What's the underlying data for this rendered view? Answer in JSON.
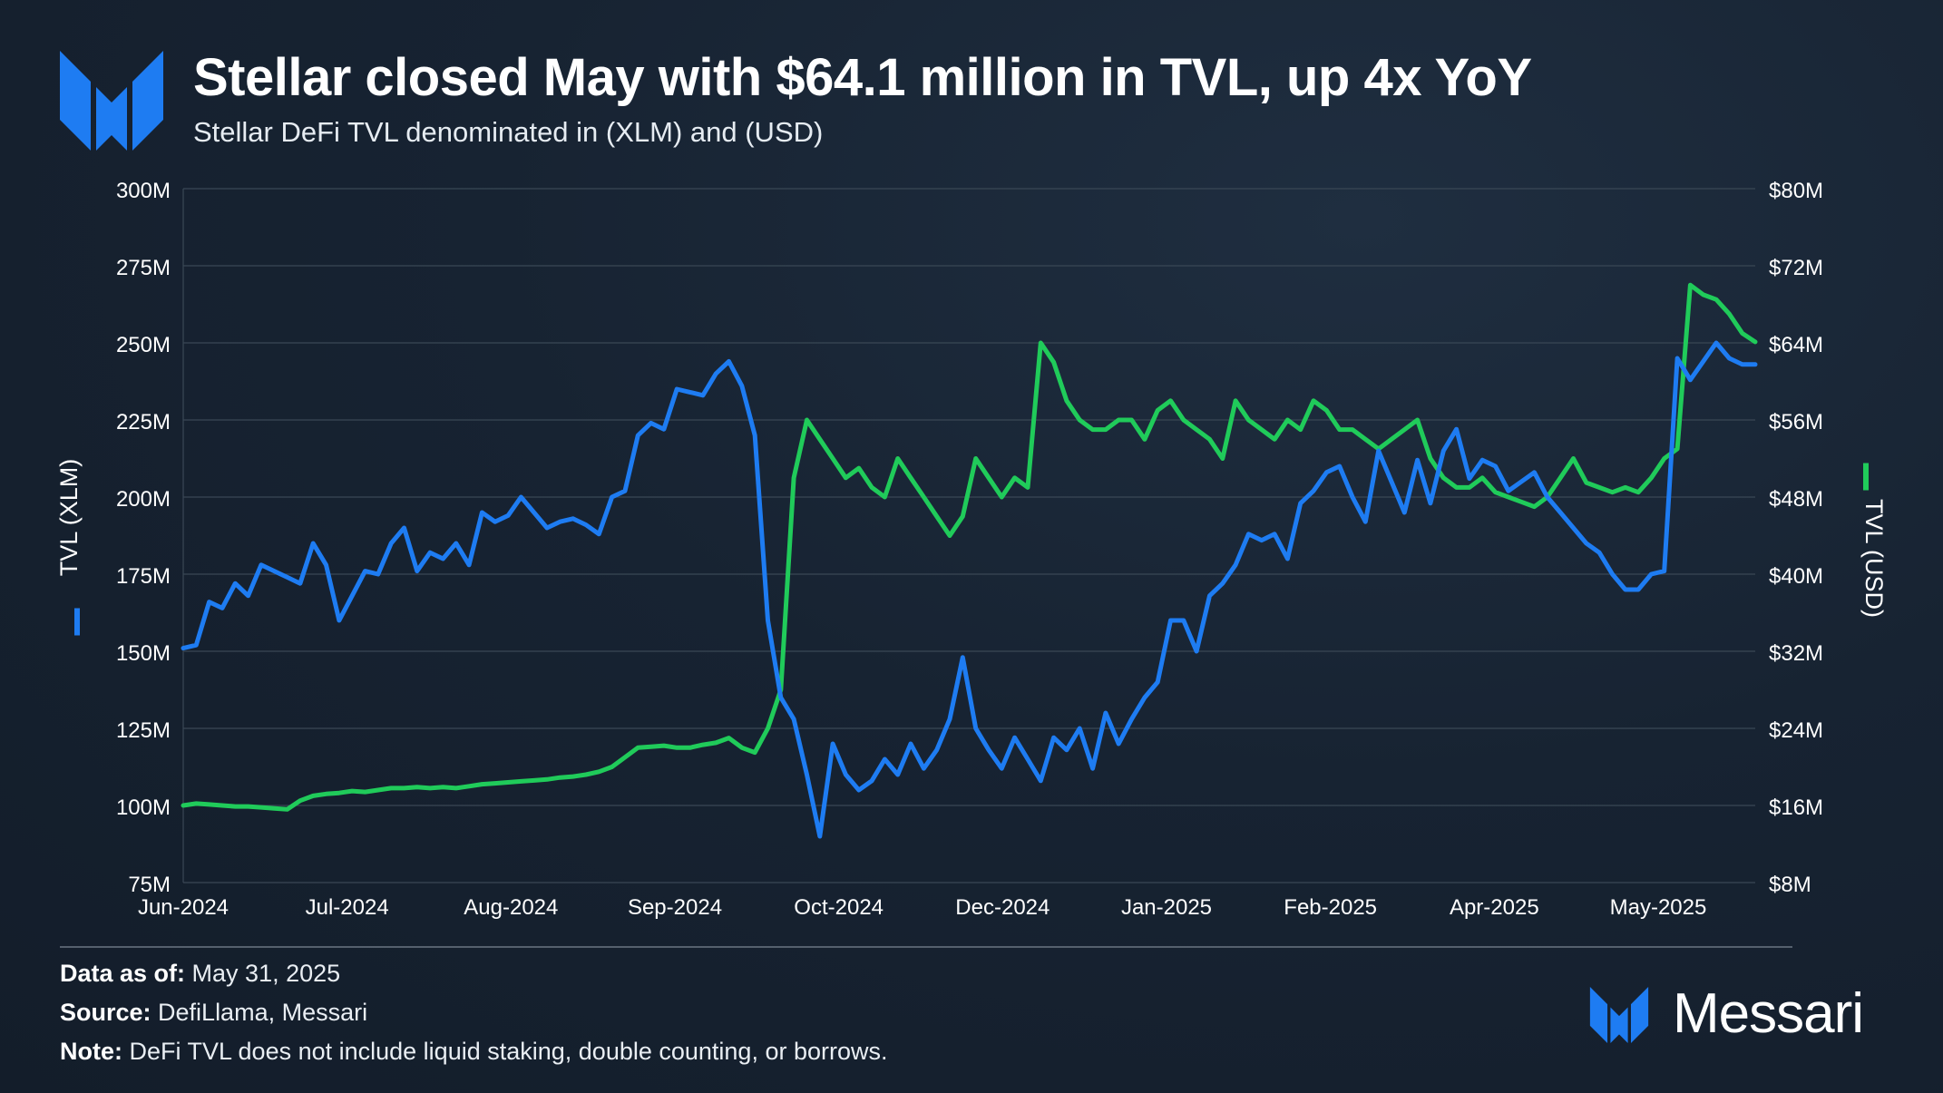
{
  "header": {
    "title": "Stellar closed May with $64.1 million in TVL, up 4x YoY",
    "subtitle": "Stellar DeFi TVL denominated in (XLM) and (USD)"
  },
  "colors": {
    "xlm": "#1e7cf2",
    "usd": "#20cb5a",
    "grid": "#3a4755",
    "text": "#ffffff"
  },
  "chart_data": {
    "type": "line",
    "x": [
      "2024-06-01",
      "2024-06-04",
      "2024-06-07",
      "2024-06-10",
      "2024-06-13",
      "2024-06-16",
      "2024-06-19",
      "2024-06-22",
      "2024-06-25",
      "2024-06-28",
      "2024-07-01",
      "2024-07-04",
      "2024-07-07",
      "2024-07-10",
      "2024-07-13",
      "2024-07-16",
      "2024-07-19",
      "2024-07-22",
      "2024-07-25",
      "2024-07-28",
      "2024-07-31",
      "2024-08-03",
      "2024-08-06",
      "2024-08-09",
      "2024-08-12",
      "2024-08-15",
      "2024-08-18",
      "2024-08-21",
      "2024-08-24",
      "2024-08-27",
      "2024-08-30",
      "2024-09-02",
      "2024-09-05",
      "2024-09-08",
      "2024-09-11",
      "2024-09-14",
      "2024-09-17",
      "2024-09-20",
      "2024-09-23",
      "2024-09-26",
      "2024-09-29",
      "2024-10-02",
      "2024-10-05",
      "2024-10-08",
      "2024-10-11",
      "2024-10-14",
      "2024-10-17",
      "2024-10-20",
      "2024-10-23",
      "2024-10-26",
      "2024-10-29",
      "2024-11-01",
      "2024-11-04",
      "2024-11-07",
      "2024-11-10",
      "2024-11-13",
      "2024-11-16",
      "2024-11-19",
      "2024-11-22",
      "2024-11-25",
      "2024-11-28",
      "2024-12-01",
      "2024-12-04",
      "2024-12-07",
      "2024-12-10",
      "2024-12-13",
      "2024-12-16",
      "2024-12-19",
      "2024-12-22",
      "2024-12-25",
      "2024-12-28",
      "2024-12-31",
      "2025-01-03",
      "2025-01-06",
      "2025-01-09",
      "2025-01-12",
      "2025-01-15",
      "2025-01-18",
      "2025-01-21",
      "2025-01-24",
      "2025-01-27",
      "2025-01-30",
      "2025-02-02",
      "2025-02-05",
      "2025-02-08",
      "2025-02-11",
      "2025-02-14",
      "2025-02-17",
      "2025-02-20",
      "2025-02-23",
      "2025-02-26",
      "2025-03-01",
      "2025-03-04",
      "2025-03-07",
      "2025-03-10",
      "2025-03-13",
      "2025-03-16",
      "2025-03-19",
      "2025-03-22",
      "2025-03-25",
      "2025-03-28",
      "2025-03-31",
      "2025-04-03",
      "2025-04-06",
      "2025-04-09",
      "2025-04-12",
      "2025-04-15",
      "2025-04-18",
      "2025-04-21",
      "2025-04-24",
      "2025-04-27",
      "2025-04-30",
      "2025-05-03",
      "2025-05-06",
      "2025-05-09",
      "2025-05-12",
      "2025-05-15",
      "2025-05-18",
      "2025-05-21",
      "2025-05-24",
      "2025-05-27",
      "2025-05-30"
    ],
    "series": [
      {
        "name": "TVL (XLM)",
        "axis": "left",
        "values": [
          151,
          152,
          166,
          164,
          172,
          168,
          178,
          176,
          174,
          172,
          185,
          178,
          160,
          168,
          176,
          175,
          185,
          190,
          176,
          182,
          180,
          185,
          178,
          195,
          192,
          194,
          200,
          195,
          190,
          192,
          193,
          191,
          188,
          200,
          202,
          220,
          224,
          222,
          235,
          234,
          233,
          240,
          244,
          236,
          220,
          160,
          135,
          128,
          110,
          90,
          120,
          110,
          105,
          108,
          115,
          110,
          120,
          112,
          118,
          128,
          148,
          125,
          118,
          112,
          122,
          115,
          108,
          122,
          118,
          125,
          112,
          130,
          120,
          128,
          135,
          140,
          160,
          160,
          150,
          168,
          172,
          178,
          188,
          186,
          188,
          180,
          198,
          202,
          208,
          210,
          200,
          192,
          215,
          205,
          195,
          212,
          198,
          215,
          222,
          206,
          212,
          210,
          202,
          205,
          208,
          200,
          195,
          190,
          185,
          182,
          175,
          170,
          170,
          175,
          176,
          245,
          238,
          244,
          250,
          245,
          243,
          243
        ],
        "ylim": [
          75,
          300
        ],
        "ticks": [
          "300M",
          "275M",
          "250M",
          "225M",
          "200M",
          "175M",
          "150M",
          "125M",
          "100M",
          "75M"
        ]
      },
      {
        "name": "TVL (USD)",
        "axis": "right",
        "values": [
          16.0,
          16.2,
          16.1,
          16.0,
          15.9,
          15.9,
          15.8,
          15.7,
          15.6,
          16.5,
          17.0,
          17.2,
          17.3,
          17.5,
          17.4,
          17.6,
          17.8,
          17.8,
          17.9,
          17.8,
          17.9,
          17.8,
          18.0,
          18.2,
          18.3,
          18.4,
          18.5,
          18.6,
          18.7,
          18.9,
          19.0,
          19.2,
          19.5,
          20.0,
          21.0,
          22.0,
          22.1,
          22.2,
          22.0,
          22.0,
          22.3,
          22.5,
          23.0,
          22.0,
          21.5,
          24.0,
          28.0,
          50.0,
          56.0,
          54.0,
          52.0,
          50.0,
          51.0,
          49.0,
          48.0,
          52.0,
          50.0,
          48.0,
          46.0,
          44.0,
          46.0,
          52.0,
          50.0,
          48.0,
          50.0,
          49.0,
          64.0,
          62.0,
          58.0,
          56.0,
          55.0,
          55.0,
          56.0,
          56.0,
          54.0,
          57.0,
          58.0,
          56.0,
          55.0,
          54.0,
          52.0,
          58.0,
          56.0,
          55.0,
          54.0,
          56.0,
          55.0,
          58.0,
          57.0,
          55.0,
          55.0,
          54.0,
          53.0,
          54.0,
          55.0,
          56.0,
          52.0,
          50.0,
          49.0,
          49.0,
          50.0,
          48.5,
          48.0,
          47.5,
          47.0,
          48.0,
          50.0,
          52.0,
          49.5,
          49.0,
          48.5,
          49.0,
          48.5,
          50.0,
          52.0,
          53.0,
          70.0,
          69.0,
          68.5,
          67.0,
          65.0,
          64.1
        ],
        "ylim": [
          8,
          80
        ],
        "ticks": [
          "$80M",
          "$72M",
          "$64M",
          "$56M",
          "$48M",
          "$40M",
          "$32M",
          "$24M",
          "$16M",
          "$8M"
        ]
      }
    ],
    "xticks": [
      "Jun-2024",
      "Jul-2024",
      "Aug-2024",
      "Sep-2024",
      "Oct-2024",
      "Dec-2024",
      "Jan-2025",
      "Feb-2025",
      "Apr-2025",
      "May-2025"
    ],
    "ylabel_left": "TVL (XLM)",
    "ylabel_right": "TVL (USD)",
    "grid": true,
    "legend": "none"
  },
  "footer": {
    "date_label": "Data as of:",
    "date_value": " May 31, 2025",
    "source_label": "Source:",
    "source_value": " DefiLlama, Messari",
    "note_label": "Note:",
    "note_value": " DeFi TVL does not include liquid staking, double counting, or borrows."
  },
  "brand": {
    "name": "Messari"
  }
}
